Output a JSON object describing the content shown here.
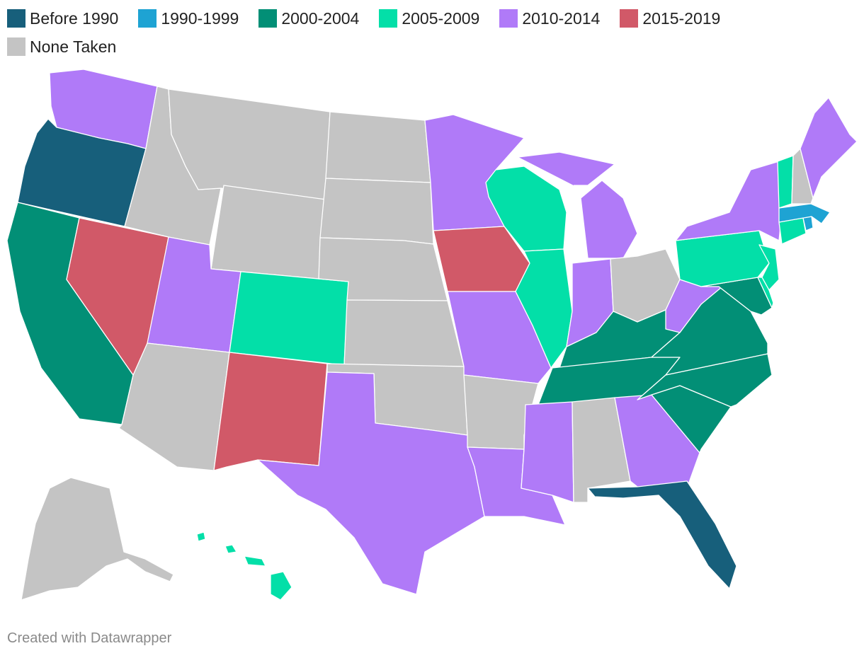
{
  "legend": {
    "items": [
      {
        "label": "Before 1990",
        "color": "#175f7b"
      },
      {
        "label": "1990-1999",
        "color": "#1ea3d3"
      },
      {
        "label": "2000-2004",
        "color": "#028f76"
      },
      {
        "label": "2005-2009",
        "color": "#03dfa8"
      },
      {
        "label": "2010-2014",
        "color": "#b07af8"
      },
      {
        "label": "2015-2019",
        "color": "#d15968"
      },
      {
        "label": "None Taken",
        "color": "#c4c4c4"
      }
    ]
  },
  "map": {
    "states": {
      "WA": "2010-2014",
      "OR": "Before 1990",
      "CA": "2000-2004",
      "NV": "2015-2019",
      "ID": "None Taken",
      "MT": "None Taken",
      "WY": "None Taken",
      "UT": "2010-2014",
      "AZ": "None Taken",
      "CO": "2005-2009",
      "NM": "2015-2019",
      "ND": "None Taken",
      "SD": "None Taken",
      "NE": "None Taken",
      "KS": "None Taken",
      "OK": "None Taken",
      "TX": "2010-2014",
      "MN": "2010-2014",
      "IA": "2015-2019",
      "MO": "2010-2014",
      "AR": "None Taken",
      "LA": "2010-2014",
      "WI": "2005-2009",
      "IL": "2005-2009",
      "MI": "2010-2014",
      "IN": "2010-2014",
      "OH": "None Taken",
      "KY": "2000-2004",
      "TN": "2000-2004",
      "MS": "2010-2014",
      "AL": "None Taken",
      "GA": "2010-2014",
      "FL": "Before 1990",
      "SC": "2000-2004",
      "NC": "2000-2004",
      "VA": "2000-2004",
      "WV": "2010-2014",
      "MD": "2000-2004",
      "DE": "2005-2009",
      "PA": "2005-2009",
      "NJ": "2005-2009",
      "NY": "2010-2014",
      "CT": "2005-2009",
      "RI": "1990-1999",
      "MA": "1990-1999",
      "VT": "2005-2009",
      "NH": "None Taken",
      "ME": "2010-2014",
      "AK": "None Taken",
      "HI": "2005-2009"
    }
  },
  "credit": "Created with Datawrapper"
}
